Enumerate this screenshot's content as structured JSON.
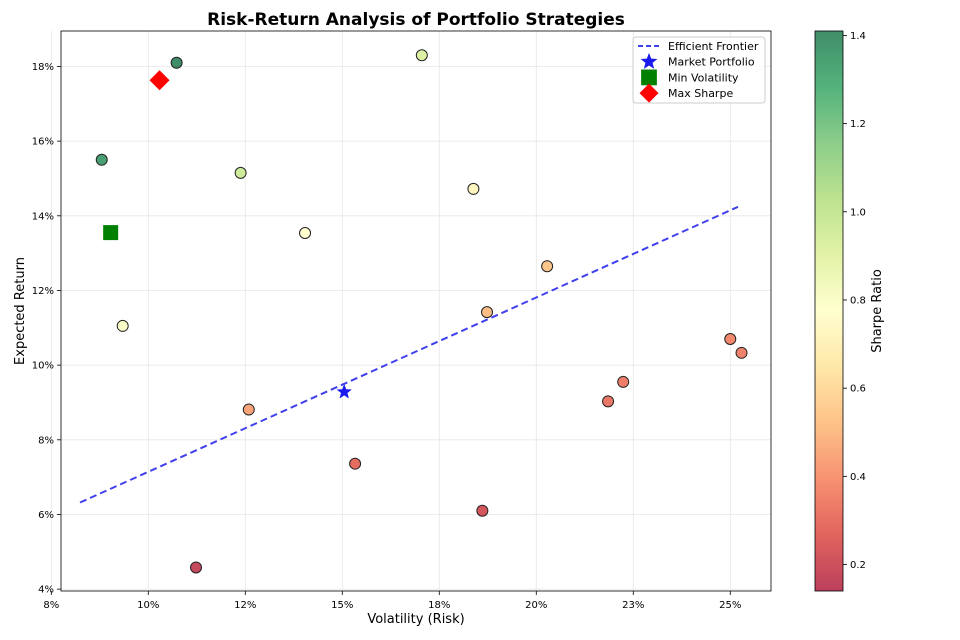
{
  "chart_data": {
    "type": "scatter",
    "title": "Risk-Return Analysis of Portfolio Strategies",
    "xlabel": "Volatility (Risk)",
    "ylabel": "Expected Return",
    "xlim": [
      0.0775,
      0.2605
    ],
    "ylim": [
      0.0395,
      0.1895
    ],
    "xticks": [
      0.075,
      0.1,
      0.125,
      0.15,
      0.175,
      0.2,
      0.225,
      0.25
    ],
    "xtick_labels": [
      "8%",
      "10%",
      "12%",
      "15%",
      "18%",
      "20%",
      "23%",
      "25%"
    ],
    "yticks": [
      0.04,
      0.06,
      0.08,
      0.1,
      0.12,
      0.14,
      0.16,
      0.18
    ],
    "ytick_labels": [
      "4%",
      "6%",
      "8%",
      "10%",
      "12%",
      "14%",
      "16%",
      "18%"
    ],
    "grid": true,
    "colorbar": {
      "label": "Sharpe Ratio",
      "range": [
        0.14,
        1.41
      ],
      "ticks": [
        0.2,
        0.4,
        0.6,
        0.8,
        1.0,
        1.2,
        1.4
      ],
      "tick_labels": [
        "0.2",
        "0.4",
        "0.6",
        "0.8",
        "1.0",
        "1.2",
        "1.4"
      ],
      "colormap": "RdYlGn",
      "stops": [
        "#a50026",
        "#d73027",
        "#f46d43",
        "#fdae61",
        "#fee08b",
        "#ffffbf",
        "#d9ef8b",
        "#a6d96a",
        "#66bd63",
        "#1a9850",
        "#006837"
      ]
    },
    "series": [
      {
        "name": "Portfolios",
        "points": [
          {
            "x": 0.1073,
            "y": 0.181,
            "sharpe": 1.41
          },
          {
            "x": 0.088,
            "y": 0.155,
            "sharpe": 1.35
          },
          {
            "x": 0.0934,
            "y": 0.1105,
            "sharpe": 0.8
          },
          {
            "x": 0.1123,
            "y": 0.0458,
            "sharpe": 0.17
          },
          {
            "x": 0.1238,
            "y": 0.1515,
            "sharpe": 0.97
          },
          {
            "x": 0.1259,
            "y": 0.0881,
            "sharpe": 0.44
          },
          {
            "x": 0.1404,
            "y": 0.1354,
            "sharpe": 0.78
          },
          {
            "x": 0.1533,
            "y": 0.0736,
            "sharpe": 0.29
          },
          {
            "x": 0.1705,
            "y": 0.183,
            "sharpe": 0.92
          },
          {
            "x": 0.1838,
            "y": 0.1472,
            "sharpe": 0.72
          },
          {
            "x": 0.1873,
            "y": 0.1142,
            "sharpe": 0.51
          },
          {
            "x": 0.1861,
            "y": 0.061,
            "sharpe": 0.22
          },
          {
            "x": 0.2028,
            "y": 0.1265,
            "sharpe": 0.53
          },
          {
            "x": 0.2185,
            "y": 0.0903,
            "sharpe": 0.32
          },
          {
            "x": 0.2224,
            "y": 0.0955,
            "sharpe": 0.34
          },
          {
            "x": 0.25,
            "y": 0.107,
            "sharpe": 0.37
          },
          {
            "x": 0.2529,
            "y": 0.1033,
            "sharpe": 0.35
          }
        ]
      }
    ],
    "efficient_frontier": {
      "name": "Efficient Frontier",
      "color": "#4040ee",
      "x": [
        0.0824,
        0.252
      ],
      "y": [
        0.0632,
        0.1424
      ]
    },
    "markers": [
      {
        "name": "Market Portfolio",
        "shape": "star",
        "color": "#1a1aee",
        "x": 0.1505,
        "y": 0.0928
      },
      {
        "name": "Min Volatility",
        "shape": "square",
        "color": "#008000",
        "x": 0.0903,
        "y": 0.1355
      },
      {
        "name": "Max Sharpe",
        "shape": "diamond",
        "color": "#ff0000",
        "x": 0.1029,
        "y": 0.1763
      }
    ],
    "legend_position": "top-right"
  }
}
